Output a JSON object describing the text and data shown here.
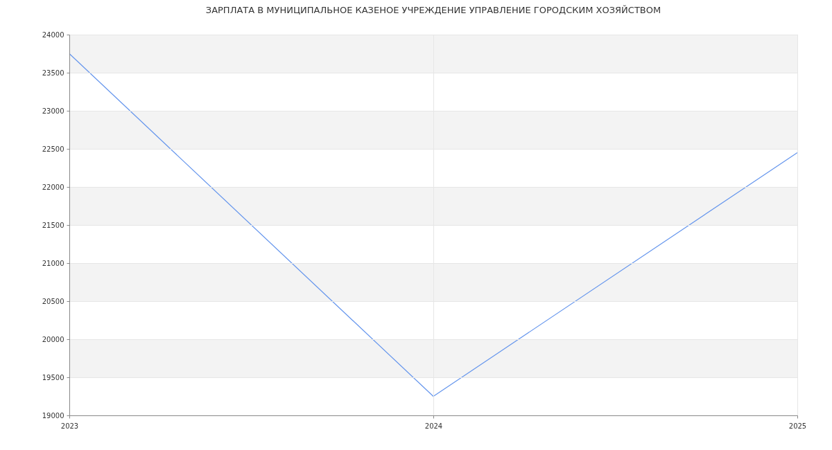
{
  "chart_data": {
    "type": "line",
    "title": "ЗАРПЛАТА В МУНИЦИПАЛЬНОЕ КАЗЕНОЕ УЧРЕЖДЕНИЕ УПРАВЛЕНИЕ ГОРОДСКИМ ХОЗЯЙСТВОМ",
    "x": [
      2023,
      2024,
      2025
    ],
    "series": [
      {
        "color": "#6495ed",
        "values": [
          23750,
          19250,
          22450
        ]
      }
    ],
    "xlim": [
      2023,
      2025
    ],
    "xticks": [
      2023,
      2024,
      2025
    ],
    "ylim": [
      19000,
      24000
    ],
    "yticks": [
      19000,
      19500,
      20000,
      20500,
      21000,
      21500,
      22000,
      22500,
      23000,
      23500,
      24000
    ],
    "grid": true,
    "marker": "none",
    "line_style": "solid",
    "bands": [
      {
        "axis": "y",
        "from": 19500,
        "to": 20000,
        "color": "#f3f3f3"
      },
      {
        "axis": "y",
        "from": 20500,
        "to": 21000,
        "color": "#f3f3f3"
      },
      {
        "axis": "y",
        "from": 21500,
        "to": 22000,
        "color": "#f3f3f3"
      },
      {
        "axis": "y",
        "from": 22500,
        "to": 23000,
        "color": "#f3f3f3"
      },
      {
        "axis": "y",
        "from": 23500,
        "to": 24000,
        "color": "#f3f3f3"
      }
    ]
  }
}
